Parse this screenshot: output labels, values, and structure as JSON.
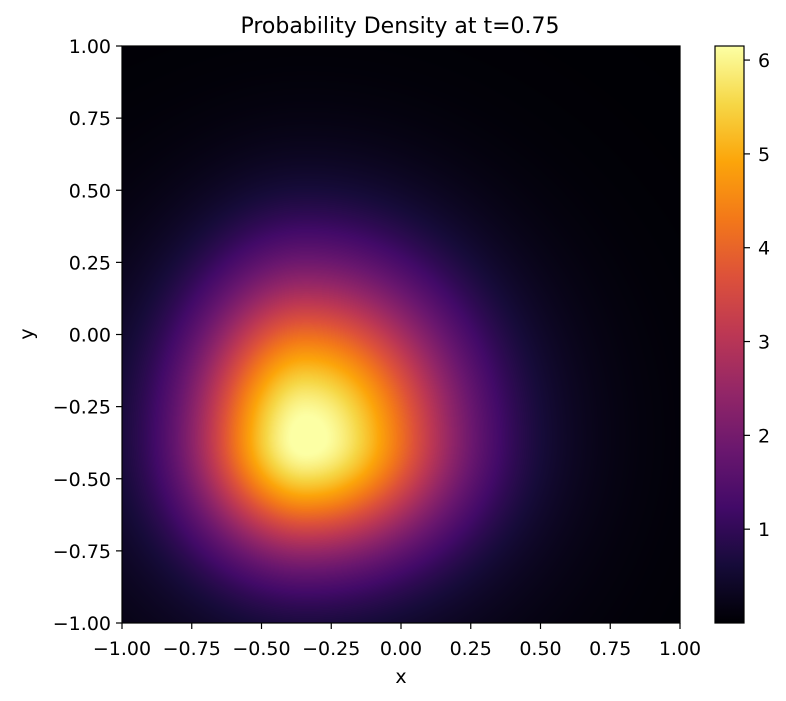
{
  "chart_data": {
    "type": "heatmap",
    "title": "Probability Density at t=0.75",
    "xlabel": "x",
    "ylabel": "y",
    "xlim": [
      -1.0,
      1.0
    ],
    "ylim": [
      -1.0,
      1.0
    ],
    "x_ticks": [
      -1.0,
      -0.75,
      -0.5,
      -0.25,
      0.0,
      0.25,
      0.5,
      0.75,
      1.0
    ],
    "y_ticks": [
      -1.0,
      -0.75,
      -0.5,
      -0.25,
      0.0,
      0.25,
      0.5,
      0.75,
      1.0
    ],
    "x_tick_labels": [
      "−1.00",
      "−0.75",
      "−0.50",
      "−0.25",
      "0.00",
      "0.25",
      "0.50",
      "0.75",
      "1.00"
    ],
    "y_tick_labels": [
      "−1.00",
      "−0.75",
      "−0.50",
      "−0.25",
      "0.00",
      "0.25",
      "0.50",
      "0.75",
      "1.00"
    ],
    "colormap": "inferno",
    "colorbar": {
      "range": [
        0.0,
        6.15
      ],
      "ticks": [
        1,
        2,
        3,
        4,
        5,
        6
      ],
      "tick_labels": [
        "1",
        "2",
        "3",
        "4",
        "5",
        "6"
      ]
    },
    "density_peak": {
      "x": -0.34,
      "y": -0.36,
      "value": 6.15
    },
    "grid": false,
    "legend": "none"
  }
}
